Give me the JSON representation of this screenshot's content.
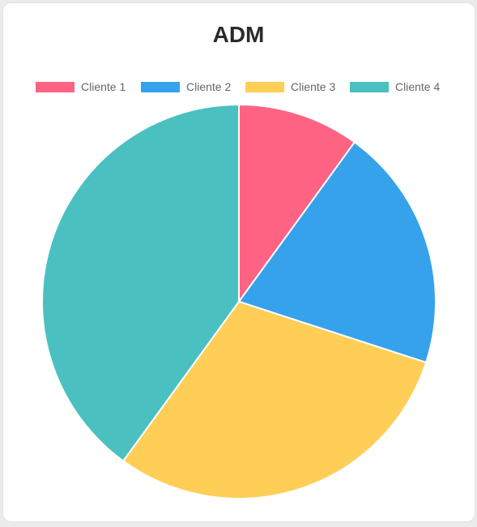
{
  "chart_data": {
    "type": "pie",
    "title": "ADM",
    "categories": [
      "Cliente 1",
      "Cliente 2",
      "Cliente 3",
      "Cliente 4"
    ],
    "values": [
      10,
      20,
      30,
      40
    ],
    "colors": [
      "#ff6384",
      "#36a2eb",
      "#ffce56",
      "#4bc0c0"
    ],
    "legend": "top",
    "slice_border_color": "#ffffff"
  }
}
